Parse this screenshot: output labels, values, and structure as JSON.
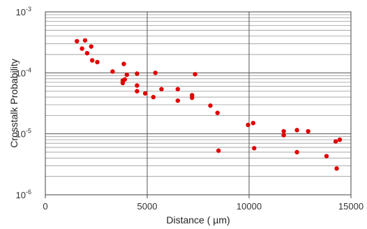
{
  "chart_data": {
    "type": "scatter",
    "xlabel": "Distance ( µm)",
    "ylabel": "Crosstalk Probability",
    "xlim": [
      0,
      15000
    ],
    "ylim": [
      1e-06,
      0.001
    ],
    "y_scale": "log",
    "grid": "horizontal minor log lines and vertical major lines",
    "marker_color": "#e00000",
    "x_ticks": [
      {
        "value": 0,
        "label": "0"
      },
      {
        "value": 5000,
        "label": "5000"
      },
      {
        "value": 10000,
        "label": "10000"
      },
      {
        "value": 15000,
        "label": "15000"
      }
    ],
    "y_ticks": [
      {
        "value": 0.001,
        "base": "10",
        "exp": "-3"
      },
      {
        "value": 0.0001,
        "base": "10",
        "exp": "-4"
      },
      {
        "value": 1e-05,
        "base": "10",
        "exp": "-5"
      },
      {
        "value": 1e-06,
        "base": "10",
        "exp": "-6"
      }
    ],
    "series": [
      {
        "points": [
          {
            "x": 1550,
            "y": 0.00033
          },
          {
            "x": 1800,
            "y": 0.00025
          },
          {
            "x": 1950,
            "y": 0.00034
          },
          {
            "x": 2050,
            "y": 0.00021
          },
          {
            "x": 2250,
            "y": 0.00027
          },
          {
            "x": 2300,
            "y": 0.00016
          },
          {
            "x": 2550,
            "y": 0.00015
          },
          {
            "x": 3300,
            "y": 0.000105
          },
          {
            "x": 3800,
            "y": 7.5e-05
          },
          {
            "x": 3800,
            "y": 6.8e-05
          },
          {
            "x": 3850,
            "y": 0.00014
          },
          {
            "x": 3900,
            "y": 7.8e-05
          },
          {
            "x": 4000,
            "y": 9.3e-05
          },
          {
            "x": 4500,
            "y": 9.7e-05
          },
          {
            "x": 4500,
            "y": 6.2e-05
          },
          {
            "x": 4500,
            "y": 5e-05
          },
          {
            "x": 4900,
            "y": 4.6e-05
          },
          {
            "x": 5300,
            "y": 4e-05
          },
          {
            "x": 5400,
            "y": 0.0001
          },
          {
            "x": 5700,
            "y": 5.4e-05
          },
          {
            "x": 6500,
            "y": 5.4e-05
          },
          {
            "x": 6500,
            "y": 3.5e-05
          },
          {
            "x": 7200,
            "y": 4.3e-05
          },
          {
            "x": 7200,
            "y": 3.9e-05
          },
          {
            "x": 7350,
            "y": 9.5e-05
          },
          {
            "x": 8100,
            "y": 2.9e-05
          },
          {
            "x": 8450,
            "y": 2.2e-05
          },
          {
            "x": 8500,
            "y": 5.3e-06
          },
          {
            "x": 9950,
            "y": 1.4e-05
          },
          {
            "x": 10200,
            "y": 1.5e-05
          },
          {
            "x": 10250,
            "y": 5.8e-06
          },
          {
            "x": 11700,
            "y": 1.1e-05
          },
          {
            "x": 11700,
            "y": 9.5e-06
          },
          {
            "x": 12350,
            "y": 1.15e-05
          },
          {
            "x": 12350,
            "y": 5e-06
          },
          {
            "x": 12900,
            "y": 1.1e-05
          },
          {
            "x": 13800,
            "y": 4.3e-06
          },
          {
            "x": 14250,
            "y": 7.5e-06
          },
          {
            "x": 14300,
            "y": 2.7e-06
          },
          {
            "x": 14450,
            "y": 8e-06
          }
        ]
      }
    ]
  }
}
